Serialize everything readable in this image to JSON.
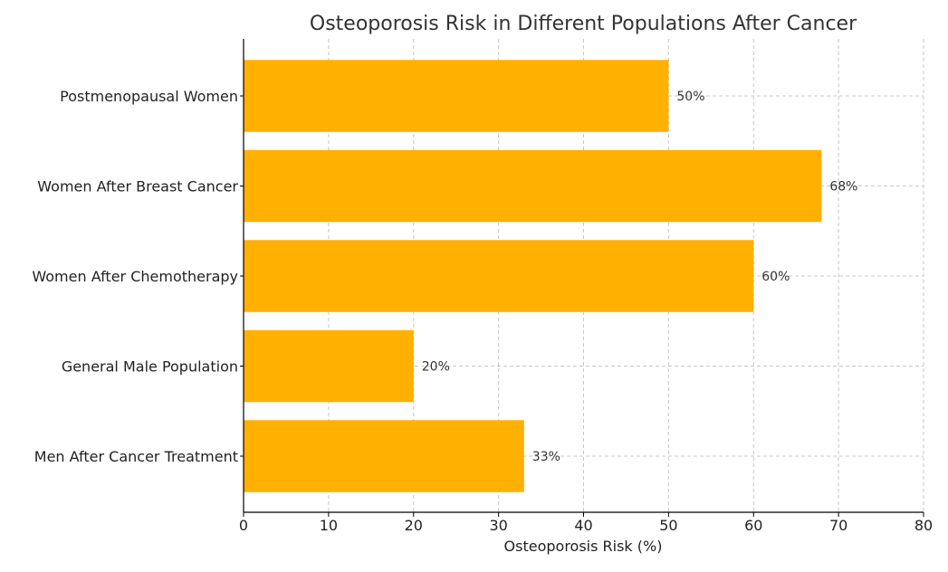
{
  "chart_data": {
    "type": "bar",
    "orientation": "horizontal",
    "title": "Osteoporosis Risk in Different Populations After Cancer",
    "xlabel": "Osteoporosis Risk (%)",
    "ylabel": "",
    "categories": [
      "Postmenopausal Women",
      "Women After Breast Cancer",
      "Women After Chemotherapy",
      "General Male Population",
      "Men After Cancer Treatment"
    ],
    "values": [
      50,
      68,
      60,
      20,
      33
    ],
    "data_labels": [
      "50%",
      "68%",
      "60%",
      "20%",
      "33%"
    ],
    "xlim": [
      0,
      80
    ],
    "xticks": [
      0,
      10,
      20,
      30,
      40,
      50,
      60,
      70,
      80
    ],
    "grid": true,
    "bar_color": "#FFB000",
    "grid_color": "#c8c8c8",
    "axis_color": "#000000"
  }
}
